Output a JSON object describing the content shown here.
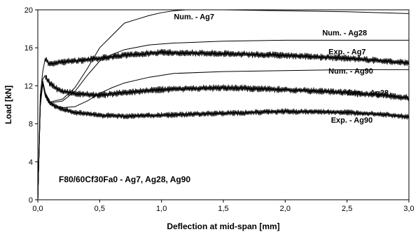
{
  "chart_data": {
    "type": "line",
    "xlabel": "Deflection at mid-span [mm]",
    "ylabel": "Load [kN]",
    "xlim": [
      0,
      3
    ],
    "ylim": [
      0,
      20
    ],
    "x_ticks": [
      "0,0",
      "0,5",
      "1,0",
      "1,5",
      "2,0",
      "2,5",
      "3,0"
    ],
    "x_tick_values": [
      0,
      0.5,
      1,
      1.5,
      2,
      2.5,
      3
    ],
    "y_ticks": [
      "0",
      "4",
      "8",
      "12",
      "16",
      "20"
    ],
    "y_tick_values": [
      0,
      4,
      8,
      12,
      16,
      20
    ],
    "grid": false,
    "annotation": "F80/60Cf30Fa0 - Ag7, Ag28, Ag90",
    "series": [
      {
        "name": "Num. - Ag7",
        "noisy": false,
        "x": [
          0,
          0.02,
          0.04,
          0.06,
          0.1,
          0.2,
          0.3,
          0.4,
          0.5,
          0.6,
          0.7,
          0.8,
          0.9,
          1.0,
          1.1,
          1.2,
          1.5,
          2.0,
          2.5,
          3.0
        ],
        "y": [
          0,
          10.0,
          12.5,
          11.3,
          10.3,
          10.6,
          11.8,
          13.8,
          16.0,
          17.3,
          18.6,
          19.0,
          19.4,
          19.7,
          19.9,
          20.0,
          20.0,
          19.9,
          19.8,
          19.6
        ]
      },
      {
        "name": "Num. - Ag28",
        "noisy": false,
        "x": [
          0,
          0.02,
          0.04,
          0.06,
          0.1,
          0.2,
          0.3,
          0.4,
          0.5,
          0.6,
          0.7,
          0.9,
          1.1,
          1.5,
          2.0,
          2.5,
          3.0
        ],
        "y": [
          0,
          10.0,
          12.4,
          11.1,
          10.2,
          10.4,
          11.4,
          13.1,
          14.6,
          15.3,
          15.8,
          16.3,
          16.5,
          16.7,
          16.8,
          16.8,
          16.8
        ]
      },
      {
        "name": "Num. - Ag90",
        "noisy": false,
        "x": [
          0,
          0.02,
          0.04,
          0.06,
          0.1,
          0.2,
          0.3,
          0.4,
          0.5,
          0.6,
          0.7,
          0.9,
          1.1,
          1.5,
          2.0,
          2.5,
          3.0
        ],
        "y": [
          0,
          9.8,
          12.3,
          10.9,
          10.0,
          9.7,
          9.8,
          10.4,
          11.2,
          11.8,
          12.3,
          12.9,
          13.3,
          13.5,
          13.6,
          13.7,
          13.7
        ]
      },
      {
        "name": "Exp. - Ag7",
        "noisy": true,
        "amplitude": 0.35,
        "x": [
          0,
          0.02,
          0.04,
          0.06,
          0.08,
          0.1,
          0.15,
          0.2,
          0.3,
          0.5,
          0.7,
          1.0,
          1.5,
          2.0,
          2.5,
          2.8,
          3.0
        ],
        "y": [
          0,
          11.0,
          13.5,
          14.9,
          14.5,
          14.3,
          14.4,
          14.5,
          14.6,
          14.9,
          15.2,
          15.5,
          15.4,
          15.2,
          14.9,
          14.6,
          14.4
        ]
      },
      {
        "name": "Exp. - Ag28",
        "noisy": true,
        "amplitude": 0.35,
        "x": [
          0,
          0.02,
          0.04,
          0.06,
          0.08,
          0.1,
          0.15,
          0.2,
          0.3,
          0.5,
          0.7,
          1.0,
          1.5,
          2.0,
          2.5,
          2.8,
          3.0
        ],
        "y": [
          0,
          10.5,
          12.7,
          13.1,
          12.6,
          12.2,
          11.7,
          11.4,
          11.2,
          11.0,
          11.3,
          11.6,
          11.8,
          11.6,
          11.3,
          11.0,
          10.7
        ]
      },
      {
        "name": "Exp. - Ag90",
        "noisy": true,
        "amplitude": 0.3,
        "x": [
          0,
          0.02,
          0.04,
          0.06,
          0.08,
          0.1,
          0.15,
          0.2,
          0.3,
          0.5,
          0.7,
          1.0,
          1.5,
          2.0,
          2.5,
          2.8,
          3.0
        ],
        "y": [
          0,
          10.0,
          12.2,
          11.0,
          10.5,
          10.2,
          9.8,
          9.5,
          9.2,
          8.9,
          8.8,
          8.9,
          9.1,
          9.3,
          9.2,
          9.0,
          8.7
        ]
      }
    ],
    "series_labels": [
      {
        "series": "Num. - Ag7",
        "text": "Num. - Ag7",
        "x": 1.1,
        "y": 19.0
      },
      {
        "series": "Num. - Ag28",
        "text": "Num. - Ag28",
        "x": 2.3,
        "y": 17.3
      },
      {
        "series": "Exp. - Ag7",
        "text": "Exp. - Ag7",
        "x": 2.35,
        "y": 15.3
      },
      {
        "series": "Num. - Ag90",
        "text": "Num. - Ag90",
        "x": 2.35,
        "y": 13.3
      },
      {
        "series": "Exp. - Ag28",
        "text": "Exp. - Ag28",
        "x": 2.5,
        "y": 11.0
      },
      {
        "series": "Exp. - Ag90",
        "text": "Exp. - Ag90",
        "x": 2.37,
        "y": 8.1
      }
    ]
  }
}
